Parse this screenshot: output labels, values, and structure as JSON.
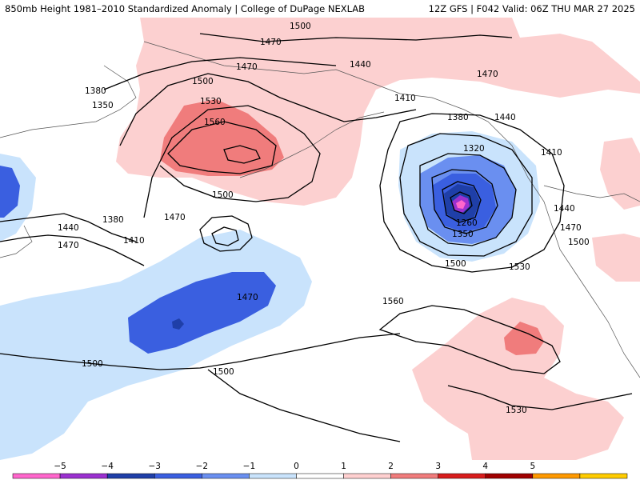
{
  "header": {
    "left": "850mb Height 1981–2010 Standardized Anomaly | College of DuPage NEXLAB",
    "right": "12Z GFS | F042 Valid: 06Z THU MAR 27 2025"
  },
  "contour_labels": [
    "1500",
    "1470",
    "1440",
    "1470",
    "1410",
    "1380",
    "1440",
    "1470",
    "1500",
    "1530",
    "1560",
    "1410",
    "1320",
    "1380",
    "1350",
    "1440",
    "1470",
    "1500",
    "1350",
    "1260",
    "1500",
    "1530",
    "1500",
    "1470",
    "1410",
    "1380",
    "1440",
    "1470",
    "1500",
    "1470",
    "1560",
    "1500",
    "1530"
  ],
  "colorbar": {
    "ticks": [
      "−5",
      "−4",
      "−3",
      "−2",
      "−1",
      "0",
      "1",
      "2",
      "3",
      "4",
      "5"
    ],
    "colors": [
      "#ff66cc",
      "#9b30d0",
      "#1f3fa8",
      "#3a5fe0",
      "#6a8ff0",
      "#c9e3fc",
      "#ffffff",
      "#ffd0d0",
      "#f07c7c",
      "#d81c1c",
      "#a00000",
      "#ff9900",
      "#ffcc00"
    ]
  }
}
